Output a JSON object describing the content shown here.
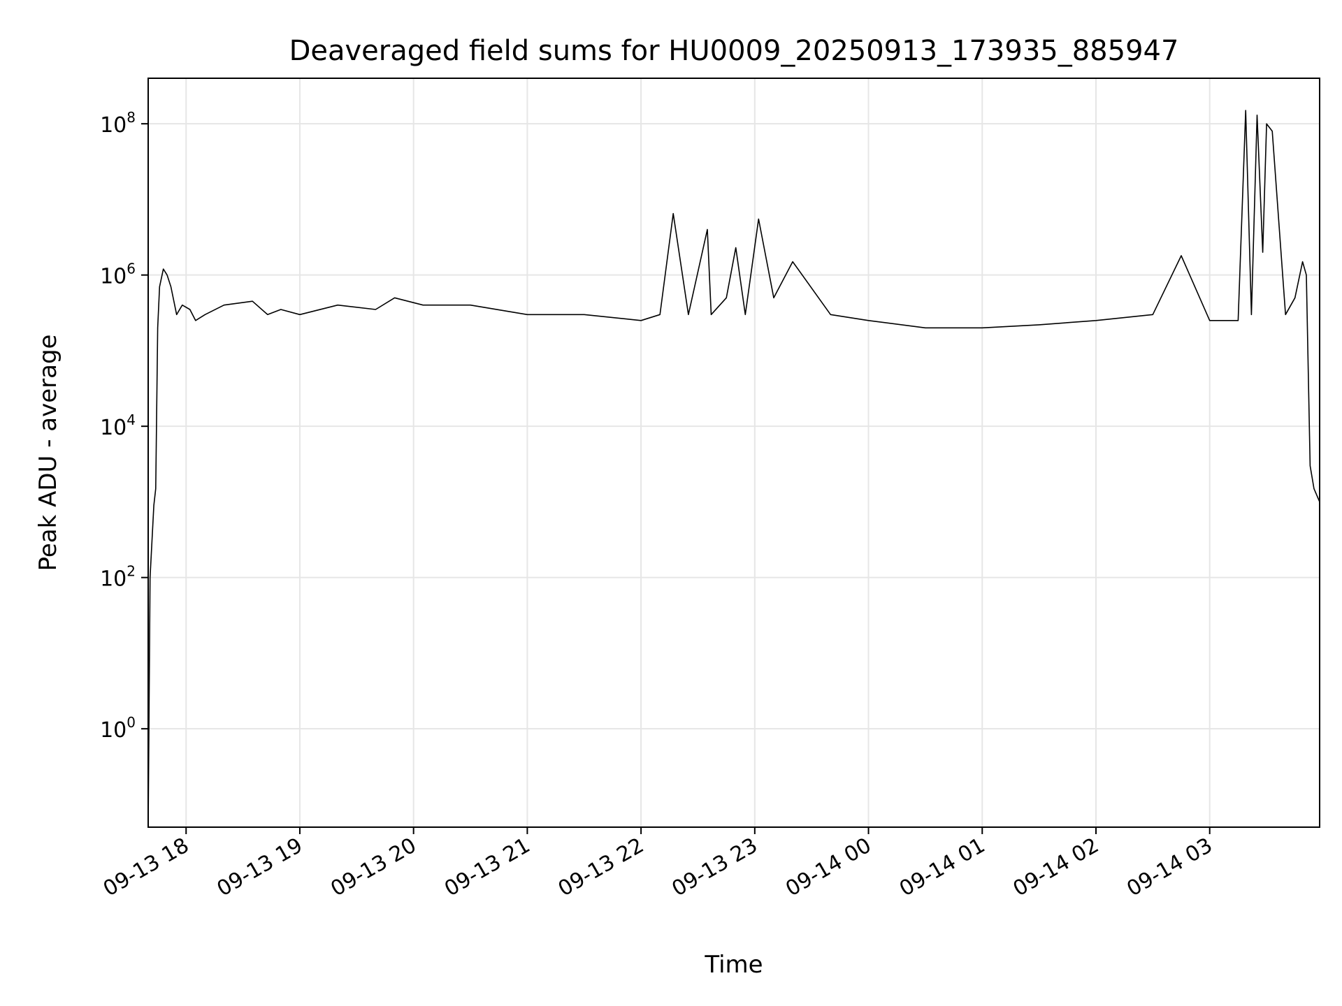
{
  "chart_data": {
    "type": "line",
    "title": "Deaveraged field sums for HU0009_20250913_173935_885947",
    "xlabel": "Time",
    "ylabel": "Peak ADU - average",
    "yscale": "log",
    "ylim": [
      0.05,
      400000000
    ],
    "xlim": [
      "2025-09-13 17:40",
      "2025-09-14 03:58"
    ],
    "grid": true,
    "x_tick_labels": [
      "09-13 18",
      "09-13 19",
      "09-13 20",
      "09-13 21",
      "09-13 22",
      "09-13 23",
      "09-14 00",
      "09-14 01",
      "09-14 02",
      "09-14 03"
    ],
    "y_tick_values": [
      1,
      100,
      10000,
      1000000,
      100000000
    ],
    "y_tick_labels": [
      {
        "base": "10",
        "exp": "0"
      },
      {
        "base": "10",
        "exp": "2"
      },
      {
        "base": "10",
        "exp": "4"
      },
      {
        "base": "10",
        "exp": "6"
      },
      {
        "base": "10",
        "exp": "8"
      }
    ],
    "line_color": "#000000",
    "series": [
      {
        "x": [
          "2025-09-13 17:40",
          "2025-09-13 17:41",
          "2025-09-13 17:42",
          "2025-09-13 17:43",
          "2025-09-13 17:44",
          "2025-09-13 17:45",
          "2025-09-13 17:46",
          "2025-09-13 17:48",
          "2025-09-13 17:50",
          "2025-09-13 17:52",
          "2025-09-13 17:55",
          "2025-09-13 17:58",
          "2025-09-13 18:02",
          "2025-09-13 18:05",
          "2025-09-13 18:10",
          "2025-09-13 18:20",
          "2025-09-13 18:35",
          "2025-09-13 18:43",
          "2025-09-13 18:50",
          "2025-09-13 19:00",
          "2025-09-13 19:20",
          "2025-09-13 19:40",
          "2025-09-13 19:50",
          "2025-09-13 20:05",
          "2025-09-13 20:30",
          "2025-09-13 21:00",
          "2025-09-13 21:30",
          "2025-09-13 22:00",
          "2025-09-13 22:10",
          "2025-09-13 22:17",
          "2025-09-13 22:25",
          "2025-09-13 22:35",
          "2025-09-13 22:37",
          "2025-09-13 22:45",
          "2025-09-13 22:50",
          "2025-09-13 22:55",
          "2025-09-13 23:02",
          "2025-09-13 23:10",
          "2025-09-13 23:20",
          "2025-09-13 23:40",
          "2025-09-14 00:00",
          "2025-09-14 00:30",
          "2025-09-14 01:00",
          "2025-09-14 01:30",
          "2025-09-14 02:00",
          "2025-09-14 02:30",
          "2025-09-14 02:45",
          "2025-09-14 03:00",
          "2025-09-14 03:15",
          "2025-09-14 03:19",
          "2025-09-14 03:22",
          "2025-09-14 03:25",
          "2025-09-14 03:28",
          "2025-09-14 03:30",
          "2025-09-14 03:33",
          "2025-09-14 03:40",
          "2025-09-14 03:45",
          "2025-09-14 03:49",
          "2025-09-14 03:51",
          "2025-09-14 03:53",
          "2025-09-14 03:55",
          "2025-09-14 03:58"
        ],
        "y": [
          0.05,
          100,
          300,
          900,
          1500,
          200000,
          700000,
          1200000,
          1000000,
          700000,
          300000,
          400000,
          350000,
          250000,
          300000,
          400000,
          450000,
          300000,
          350000,
          300000,
          400000,
          350000,
          500000,
          400000,
          400000,
          300000,
          300000,
          250000,
          300000,
          6500000,
          300000,
          4000000,
          300000,
          500000,
          2300000,
          300000,
          5500000,
          500000,
          1500000,
          300000,
          250000,
          200000,
          200000,
          220000,
          250000,
          300000,
          1800000,
          250000,
          250000,
          150000000,
          300000,
          130000000,
          2000000,
          100000000,
          80000000,
          300000,
          500000,
          1500000,
          1000000,
          3000,
          1500,
          1000
        ]
      }
    ]
  }
}
